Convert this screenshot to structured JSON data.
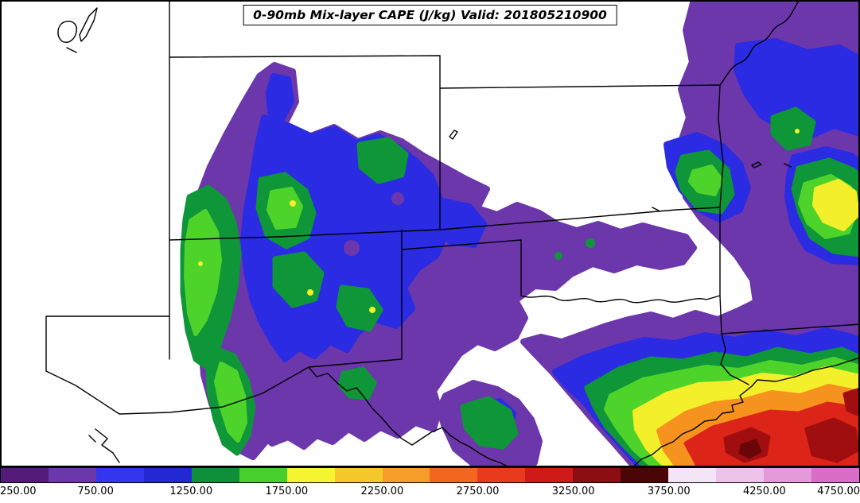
{
  "title": {
    "text": "0-90mb Mix-layer CAPE (J/kg) Valid: 201805210900"
  },
  "palette": {
    "purple": "#6c37ab",
    "blue": "#2b2be4",
    "green": "#0e9638",
    "brightgreen": "#4ed32b",
    "yellow": "#f3ef2b",
    "orange": "#f6921e",
    "red": "#dc2418",
    "darkred": "#a10e10",
    "maroon": "#6b0608",
    "border": "#000000",
    "background": "#ffffff"
  },
  "colorbar": {
    "tick_labels": [
      "250.00",
      "750.00",
      "1250.00",
      "1750.00",
      "2250.00",
      "2750.00",
      "3250.00",
      "3750.00",
      "4250.00",
      "4750.00"
    ],
    "levels": [
      250,
      500,
      750,
      1000,
      1250,
      1500,
      1750,
      2000,
      2250,
      2500,
      2750,
      3000,
      3250,
      3500,
      3750,
      4000,
      4250,
      4500,
      4750
    ],
    "segment_colors": [
      "#541c78",
      "#6c37ab",
      "#3336ee",
      "#2228d2",
      "#0f8f3a",
      "#46cf2d",
      "#f6f430",
      "#f5c92b",
      "#f59d27",
      "#f2661f",
      "#ea3a1e",
      "#cf1a1a",
      "#8c0d12",
      "#4a0507",
      "#f3e4f7",
      "#eec3ea",
      "#e49ad9",
      "#d96ec6"
    ]
  },
  "chart_data": {
    "type": "heatmap",
    "subtype": "filled-contour-weather-map",
    "title": "0-90mb Mix-layer CAPE (J/kg) Valid: 201805210900",
    "variable": "0-90mb Mix-layer CAPE",
    "units": "J/kg",
    "valid_time": "201805210900",
    "region": "South-central United States: Colorado and Kansas south through New Mexico, Oklahoma and Texas, with northern Mexico and the Gulf of Mexico coast",
    "contour_levels": [
      250,
      500,
      750,
      1000,
      1250,
      1500,
      1750,
      2000,
      2250,
      2500,
      2750,
      3000,
      3250,
      3500,
      3750,
      4000,
      4250,
      4500,
      4750
    ],
    "level_colors": [
      "#541c78",
      "#6c37ab",
      "#3336ee",
      "#2228d2",
      "#0f8f3a",
      "#46cf2d",
      "#f6f430",
      "#f5c92b",
      "#f59d27",
      "#f2661f",
      "#ea3a1e",
      "#cf1a1a",
      "#8c0d12",
      "#4a0507",
      "#f3e4f7",
      "#eec3ea",
      "#e49ad9",
      "#d96ec6"
    ],
    "legend_position": "bottom horizontal colorbar",
    "grid": false,
    "features": [
      {
        "area": "southeast Texas / upper Gulf coast near Houston",
        "approx_max_cape_jkg": 3400
      },
      {
        "area": "right map edge over Arkansas/Louisiana",
        "approx_max_cape_jkg": 2100
      },
      {
        "area": "northern New Mexico / southern Colorado high terrain",
        "approx_max_cape_jkg": 1900
      },
      {
        "area": "western Colorado mountain strip",
        "approx_max_cape_jkg": 1800
      },
      {
        "area": "northeast Oklahoma / southeast Kansas",
        "approx_max_cape_jkg": 1500
      },
      {
        "area": "northwest Mexico near Arizona border",
        "approx_max_cape_jkg": 1600
      },
      {
        "area": "Rio Grande / Big Bend corridor",
        "approx_max_cape_jkg": 1500
      },
      {
        "area": "broad enveloping low-CAPE region (purple)",
        "approx_value_jkg": "250-750"
      },
      {
        "area": "Utah, Nebraska/Kansas plains, central Mexico interior",
        "approx_value_jkg": "< 250 (white)"
      }
    ]
  }
}
